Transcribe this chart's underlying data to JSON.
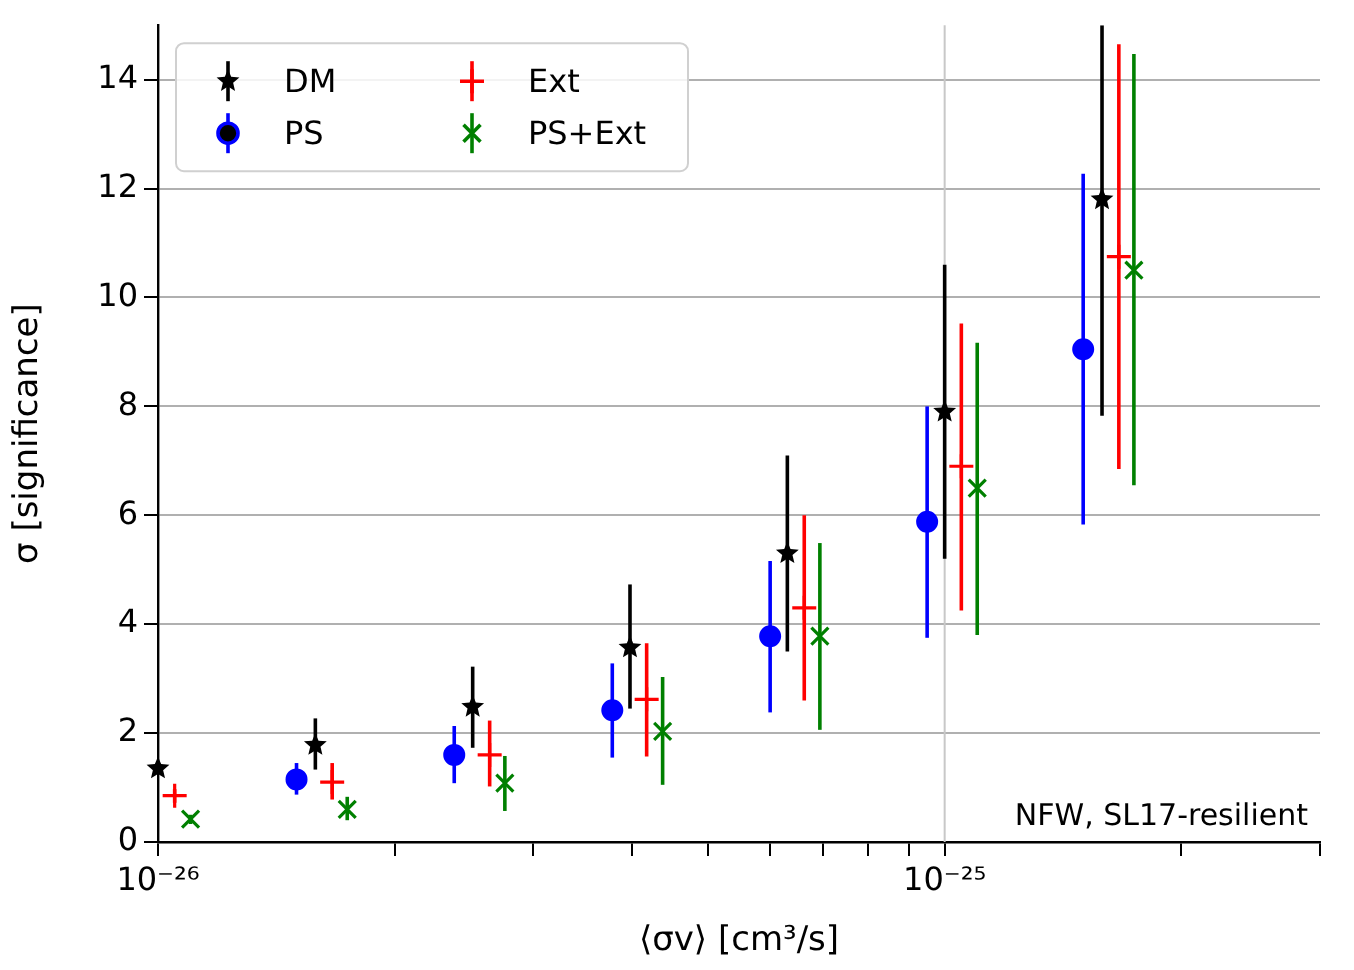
{
  "chart_data": {
    "type": "scatter",
    "xlabel": "⟨σv⟩ [cm³/s]",
    "ylabel": "σ [significance]",
    "log": "x",
    "grid": "y",
    "ref_lines": [
      {
        "axis": "x",
        "value": 1e-25,
        "color": "#c8c8c8"
      }
    ],
    "legend": "top left",
    "xlim": [
      1e-26,
      3e-25
    ],
    "xticks": [
      {
        "value": 1e-26,
        "label": "10⁻²⁶"
      },
      {
        "value": 2e-26,
        "label": null
      },
      {
        "value": 3e-26,
        "label": null
      },
      {
        "value": 4e-26,
        "label": null
      },
      {
        "value": 5e-26,
        "label": null
      },
      {
        "value": 6e-26,
        "label": null
      },
      {
        "value": 7e-26,
        "label": null
      },
      {
        "value": 8e-26,
        "label": null
      },
      {
        "value": 9e-26,
        "label": null
      },
      {
        "value": 1e-25,
        "label": "10⁻²⁵"
      },
      {
        "value": 2e-25,
        "label": null
      },
      {
        "value": 3e-25,
        "label": null
      }
    ],
    "ylim": [
      0,
      15
    ],
    "yticks": [
      0,
      2,
      4,
      6,
      8,
      10,
      12,
      14
    ],
    "series": [
      {
        "name": "DM",
        "color": "#000000",
        "marker": "star",
        "x": [
          1e-26,
          1.585e-26,
          2.512e-26,
          3.981e-26,
          6.31e-26,
          1e-25,
          1.585e-25
        ],
        "values": [
          1.35,
          1.78,
          2.48,
          3.57,
          5.3,
          7.9,
          11.8
        ],
        "errors": [
          null,
          [
            1.33,
            2.27
          ],
          [
            1.73,
            3.22
          ],
          [
            2.45,
            4.73
          ],
          [
            3.5,
            7.1
          ],
          [
            5.2,
            10.6
          ],
          [
            7.83,
            15
          ]
        ]
      },
      {
        "name": "PS",
        "color": "#0000ff",
        "marker": "circle",
        "x": [
          1.5e-26,
          2.38e-26,
          3.78e-26,
          6e-26,
          9.5e-26,
          1.5e-25
        ],
        "values": [
          1.15,
          1.6,
          2.42,
          3.78,
          5.88,
          9.05
        ],
        "errors": [
          [
            0.87,
            1.45
          ],
          [
            1.08,
            2.13
          ],
          [
            1.55,
            3.28
          ],
          [
            2.38,
            5.16
          ],
          [
            3.75,
            8.0
          ],
          [
            5.83,
            12.27
          ]
        ]
      },
      {
        "name": "Ext",
        "color": "#ff0000",
        "marker": "plus",
        "x": [
          1.05e-26,
          1.665e-26,
          2.64e-26,
          4.18e-26,
          6.63e-26,
          1.05e-25,
          1.665e-25
        ],
        "values": [
          0.85,
          1.1,
          1.6,
          2.62,
          4.3,
          6.9,
          10.75
        ],
        "errors": [
          [
            0.72,
            0.97
          ],
          [
            0.78,
            1.45
          ],
          [
            1.02,
            2.23
          ],
          [
            1.57,
            3.65
          ],
          [
            2.6,
            6.0
          ],
          [
            4.25,
            9.52
          ],
          [
            6.85,
            14.65
          ]
        ]
      },
      {
        "name": "PS+Ext",
        "color": "#008000",
        "marker": "cross",
        "x": [
          1.1e-26,
          1.74e-26,
          2.76e-26,
          4.38e-26,
          6.94e-26,
          1.1e-25,
          1.74e-25
        ],
        "values": [
          0.42,
          0.6,
          1.08,
          2.03,
          3.78,
          6.5,
          10.5
        ],
        "errors": [
          [
            0.33,
            0.5
          ],
          [
            0.4,
            0.83
          ],
          [
            0.57,
            1.58
          ],
          [
            1.05,
            3.03
          ],
          [
            2.06,
            5.49
          ],
          [
            3.8,
            9.17
          ],
          [
            6.55,
            14.47
          ]
        ]
      }
    ],
    "annotations": [
      "NFW, SL17-resilient"
    ]
  }
}
